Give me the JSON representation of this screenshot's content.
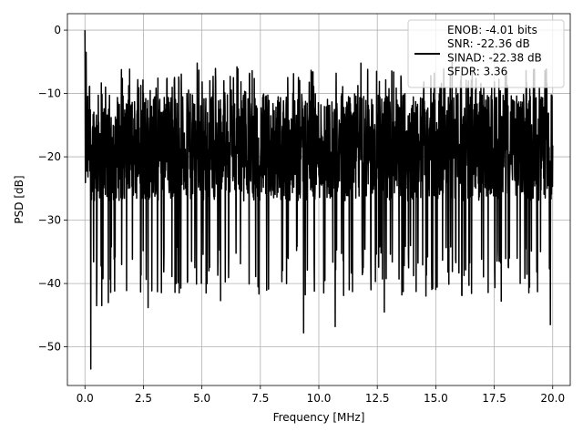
{
  "chart_data": {
    "type": "line",
    "title": "",
    "xlabel": "Frequency [MHz]",
    "ylabel": "PSD [dB]",
    "xlim": [
      -0.75,
      20.75
    ],
    "ylim": [
      -56.1,
      2.6
    ],
    "x_ticks": [
      0.0,
      2.5,
      5.0,
      7.5,
      10.0,
      12.5,
      15.0,
      17.5,
      20.0
    ],
    "x_tick_labels": [
      "0.0",
      "2.5",
      "5.0",
      "7.5",
      "10.0",
      "12.5",
      "15.0",
      "17.5",
      "20.0"
    ],
    "y_ticks": [
      0,
      -10,
      -20,
      -30,
      -40,
      -50
    ],
    "y_tick_labels": [
      "0",
      "−10",
      "−20",
      "−30",
      "−40",
      "−50"
    ],
    "grid": true,
    "legend_placement": "upper-right",
    "series": [
      {
        "name": "ENOB: -4.01 bits\nSNR: -22.36 dB\nSINAD: -22.38 dB\nSFDR: 3.36",
        "color": "#000000",
        "x_range": [
          0.0,
          20.0
        ],
        "peak_dips": [
          {
            "x": 0.0,
            "y": 0.0
          },
          {
            "x": 0.05,
            "y": -3.5
          },
          {
            "x": 0.1,
            "y": -13.5
          },
          {
            "x": 0.25,
            "y": -53.5
          },
          {
            "x": 0.5,
            "y": -43.5
          },
          {
            "x": 0.72,
            "y": -43.5
          },
          {
            "x": 1.0,
            "y": -43.0
          },
          {
            "x": 2.7,
            "y": -43.8
          },
          {
            "x": 3.1,
            "y": -41.3
          },
          {
            "x": 3.9,
            "y": -40.0
          },
          {
            "x": 4.7,
            "y": -37.5
          },
          {
            "x": 5.3,
            "y": -38.0
          },
          {
            "x": 5.8,
            "y": -42.7
          },
          {
            "x": 7.4,
            "y": -40.5
          },
          {
            "x": 9.8,
            "y": -37.0
          },
          {
            "x": 9.35,
            "y": -47.8
          },
          {
            "x": 10.7,
            "y": -46.8
          },
          {
            "x": 11.3,
            "y": -41.0
          },
          {
            "x": 11.9,
            "y": -37.5
          },
          {
            "x": 12.8,
            "y": -44.5
          },
          {
            "x": 14.6,
            "y": -38.7
          },
          {
            "x": 17.8,
            "y": -42.8
          },
          {
            "x": 19.9,
            "y": -46.5
          },
          {
            "x": 3.5,
            "y": -7.8
          },
          {
            "x": 4.8,
            "y": -5.2
          },
          {
            "x": 6.5,
            "y": -5.8
          },
          {
            "x": 11.8,
            "y": -5.2
          },
          {
            "x": 13.2,
            "y": -6.6
          },
          {
            "x": 15.7,
            "y": -5.0
          }
        ],
        "noise_floor_band_db": [
          -30,
          -10
        ]
      }
    ]
  }
}
